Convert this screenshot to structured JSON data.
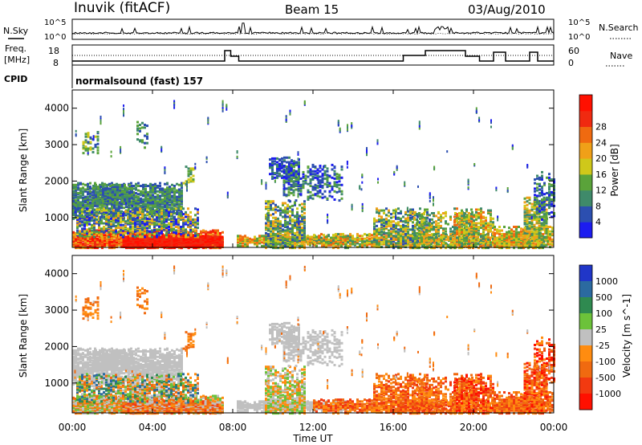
{
  "header": {
    "station": "Inuvik (fitACF)",
    "beam": "Beam 15",
    "date": "03/Aug/2010"
  },
  "noise_panel": {
    "left_label": "N.Sky",
    "left_ticks": [
      "10^5",
      "10^0"
    ],
    "right_label": "N.Search",
    "right_ticks": [
      "10^5",
      "10^0"
    ]
  },
  "freq_panel": {
    "left_label_1": "Freq.",
    "left_label_2": "[MHz]",
    "left_ticks": [
      "18",
      "8"
    ],
    "right_label": "Nave",
    "right_ticks": [
      "60",
      "0"
    ]
  },
  "cpid": {
    "label": "CPID",
    "value": "normalsound (fast) 157"
  },
  "x_axis": {
    "ticks": [
      "00:00",
      "04:00",
      "08:00",
      "12:00",
      "16:00",
      "20:00",
      "00:00"
    ],
    "title": "Time UT"
  },
  "colors": {
    "power": [
      "#1c1cf0",
      "#2c4fb0",
      "#3f8a6a",
      "#5aa33a",
      "#cfc81a",
      "#f0a018",
      "#f06a10",
      "#f02a10",
      "#ff1000"
    ],
    "velocity": [
      "#2036c8",
      "#2b6aa0",
      "#2f8a50",
      "#6cc23a",
      "#c0c0c0",
      "#ff8c10",
      "#f06a10",
      "#f23a10",
      "#ff1000"
    ]
  },
  "chart_data": [
    {
      "type": "heatmap",
      "title": "",
      "ylabel": "Slant Range [km]",
      "xlabel": "",
      "ylim": [
        180,
        4500
      ],
      "yticks": [
        "1000",
        "2000",
        "3000",
        "4000"
      ],
      "x_range_hours": [
        0,
        24
      ],
      "colorbar": {
        "label": "Power [dB]",
        "ticks": [
          "4",
          "8",
          "12",
          "16",
          "20",
          "24",
          "28"
        ]
      }
    },
    {
      "type": "heatmap",
      "title": "",
      "ylabel": "Slant Range [km]",
      "xlabel": "Time UT",
      "ylim": [
        180,
        4500
      ],
      "yticks": [
        "1000",
        "2000",
        "3000",
        "4000"
      ],
      "x_range_hours": [
        0,
        24
      ],
      "colorbar": {
        "label": "Velocity [m s^-1]",
        "ticks": [
          "1000",
          "500",
          "100",
          "25",
          "-25",
          "-100",
          "-500",
          "-1000"
        ]
      }
    }
  ]
}
